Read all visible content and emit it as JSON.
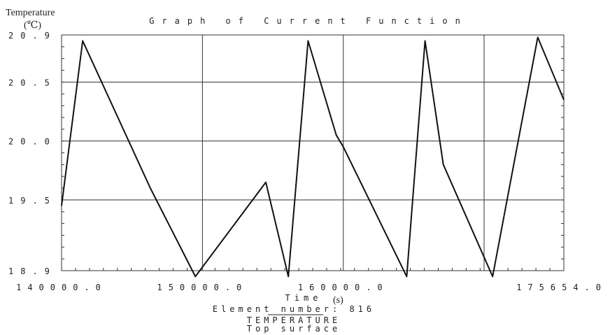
{
  "chart_data": {
    "type": "line",
    "title": "Graph of Current Function",
    "ylabel": "Temperature",
    "ylabel_unit": "(℃)",
    "xlabel": "Time",
    "xlabel_unit": "(s)",
    "xlim": [
      140000.0,
      175654.0
    ],
    "ylim": [
      18.9,
      20.9
    ],
    "x_tick_labels": [
      "140000.0",
      "150000.0",
      "160000.0",
      "175654.0"
    ],
    "x_ticks": [
      140000.0,
      150000.0,
      160000.0,
      175654.0
    ],
    "y_tick_labels": [
      "20.9",
      "20.5",
      "20.0",
      "19.5",
      "18.9"
    ],
    "y_ticks": [
      20.9,
      20.5,
      20.0,
      19.5,
      18.9
    ],
    "grid": true,
    "series": [
      {
        "values_x": [
          140000,
          141500,
          146300,
          149500,
          154500,
          156100,
          157500,
          159500,
          160000,
          164500,
          165800,
          167100,
          170600,
          173800,
          175654
        ],
        "values_y": [
          19.45,
          20.85,
          19.6,
          18.85,
          19.65,
          18.85,
          20.85,
          20.05,
          19.95,
          18.85,
          20.85,
          19.8,
          18.85,
          20.88,
          20.35
        ]
      }
    ]
  },
  "footer": {
    "element_label": "Element number: 816",
    "line1": "TEMPERATURE",
    "line2": "Top surface"
  },
  "colors": {
    "line": "#111111",
    "grid": "#333333",
    "text": "#222222"
  }
}
